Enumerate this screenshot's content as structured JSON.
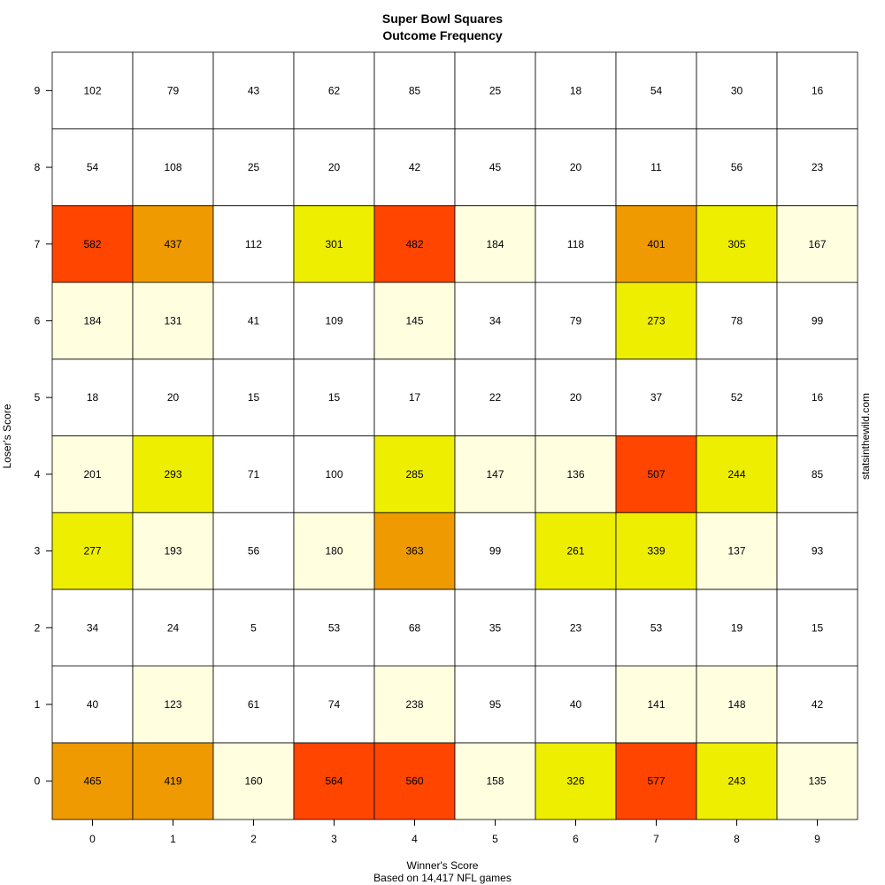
{
  "chart_data": {
    "type": "heatmap",
    "title": "Super Bowl Squares",
    "subtitle": "Outcome Frequency",
    "xlabel": "Winner's Score",
    "ylabel": "Loser's Score",
    "note": "Based on 14,417 NFL games",
    "credit": "statsinthewild.com",
    "x_categories": [
      "0",
      "1",
      "2",
      "3",
      "4",
      "5",
      "6",
      "7",
      "8",
      "9"
    ],
    "y_categories": [
      "0",
      "1",
      "2",
      "3",
      "4",
      "5",
      "6",
      "7",
      "8",
      "9"
    ],
    "values": [
      [
        465,
        419,
        160,
        564,
        560,
        158,
        326,
        577,
        243,
        135
      ],
      [
        40,
        123,
        61,
        74,
        238,
        95,
        40,
        141,
        148,
        42
      ],
      [
        34,
        24,
        5,
        53,
        68,
        35,
        23,
        53,
        19,
        15
      ],
      [
        277,
        193,
        56,
        180,
        363,
        99,
        261,
        339,
        137,
        93
      ],
      [
        201,
        293,
        71,
        100,
        285,
        147,
        136,
        507,
        244,
        85
      ],
      [
        18,
        20,
        15,
        15,
        17,
        22,
        20,
        37,
        52,
        16
      ],
      [
        184,
        131,
        41,
        109,
        145,
        34,
        79,
        273,
        78,
        99
      ],
      [
        582,
        437,
        112,
        301,
        482,
        184,
        118,
        401,
        305,
        167
      ],
      [
        54,
        108,
        25,
        20,
        42,
        45,
        20,
        11,
        56,
        23
      ],
      [
        102,
        79,
        43,
        62,
        85,
        25,
        18,
        54,
        30,
        16
      ]
    ],
    "color_breaks": [
      {
        "min": 0,
        "max": 120,
        "color": "#FFFFFF"
      },
      {
        "min": 120,
        "max": 240,
        "color": "#FFFFE0"
      },
      {
        "min": 240,
        "max": 360,
        "color": "#EEEE00"
      },
      {
        "min": 360,
        "max": 480,
        "color": "#EE9A00"
      },
      {
        "min": 480,
        "max": 600,
        "color": "#FF4500"
      }
    ]
  }
}
